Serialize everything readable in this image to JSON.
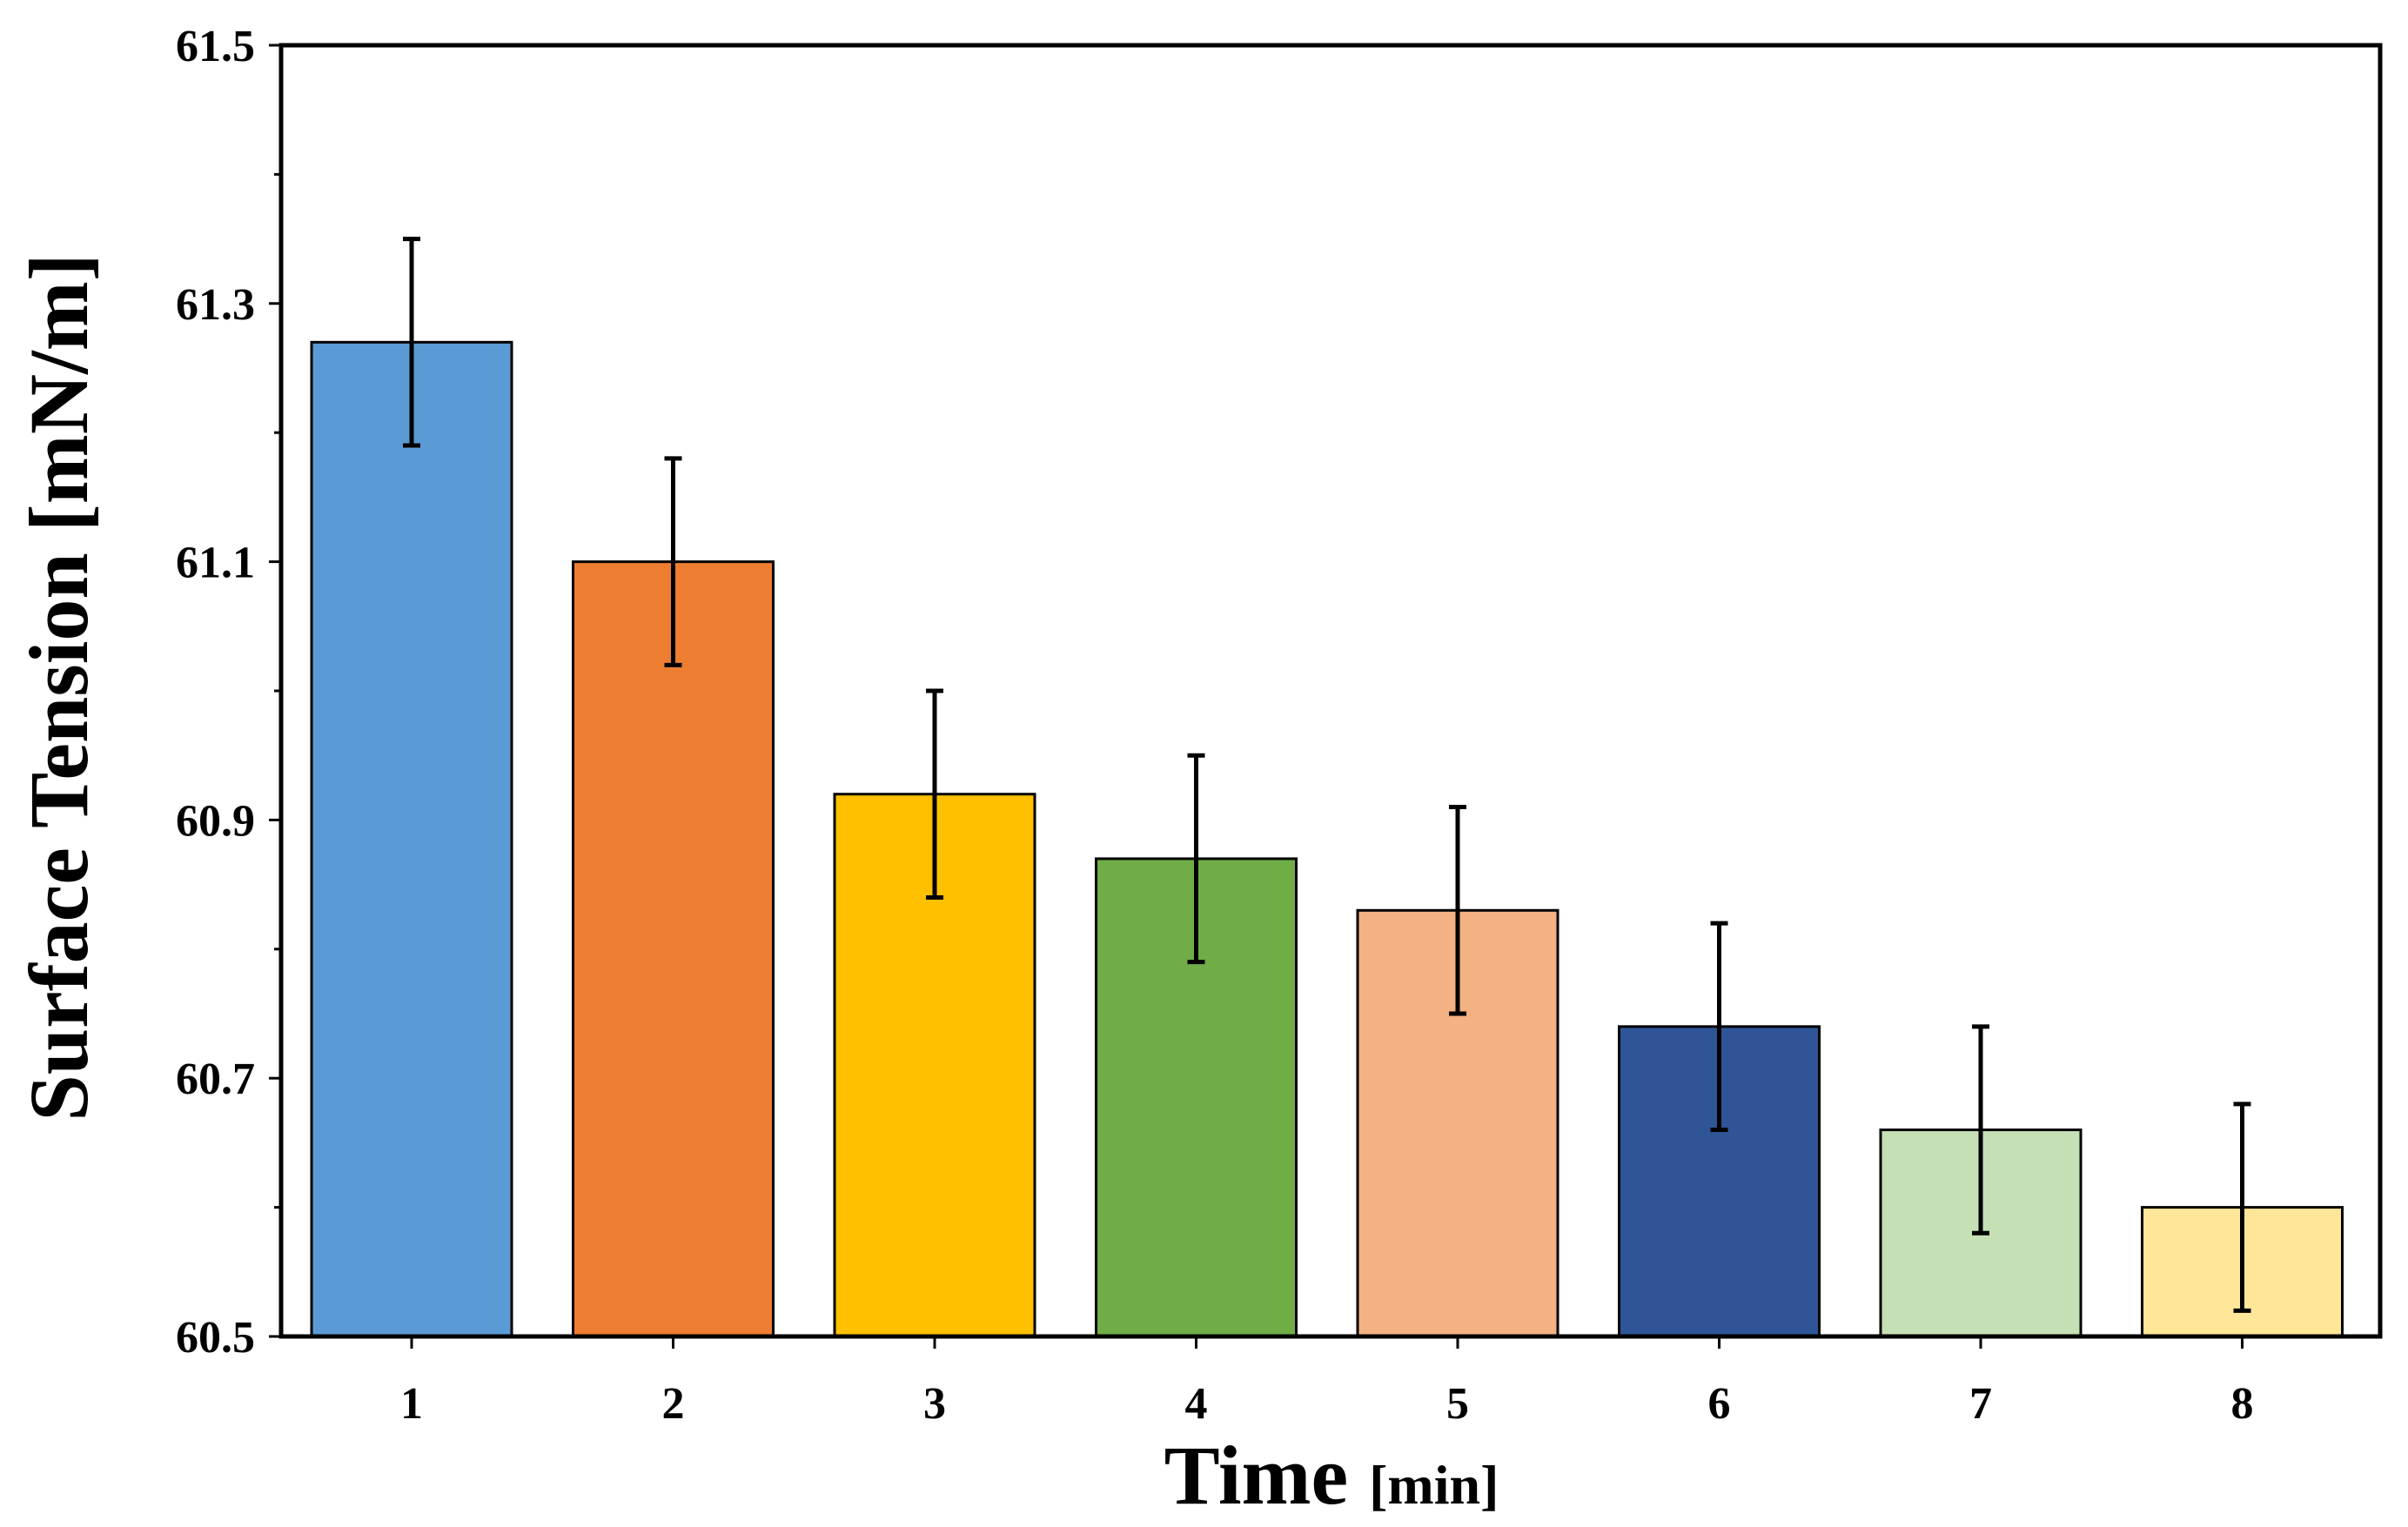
{
  "chart_data": {
    "type": "bar",
    "title": "",
    "xlabel": "Time",
    "xlabel_unit": "[min]",
    "ylabel": "Surface Tension [mN/m]",
    "categories": [
      "1",
      "2",
      "3",
      "4",
      "5",
      "6",
      "7",
      "8"
    ],
    "values": [
      61.27,
      61.1,
      60.92,
      60.87,
      60.83,
      60.74,
      60.66,
      60.6
    ],
    "errors": [
      0.08,
      0.08,
      0.08,
      0.08,
      0.08,
      0.08,
      0.08,
      0.08
    ],
    "colors": [
      "#5B9BD5",
      "#ED7D31",
      "#FFC000",
      "#70AD47",
      "#F4B183",
      "#2F5597",
      "#C5E0B4",
      "#FFE699"
    ],
    "ylim": [
      60.5,
      61.5
    ],
    "yticks": [
      "60.5",
      "60.7",
      "60.9",
      "61.1",
      "61.3",
      "61.5"
    ],
    "grid": false,
    "legend": "none"
  }
}
